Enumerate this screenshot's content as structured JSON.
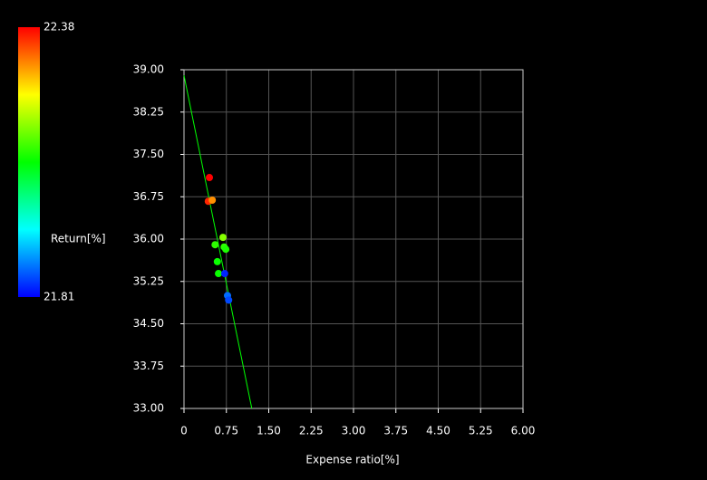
{
  "chart_data": {
    "type": "scatter",
    "xlabel": "Expense ratio[%]",
    "x": [
      0.45,
      0.43,
      0.5,
      0.69,
      0.55,
      0.71,
      0.74,
      0.59,
      0.61,
      0.72,
      0.77,
      0.79
    ],
    "y": [
      37.09,
      36.67,
      36.69,
      36.03,
      35.9,
      35.86,
      35.82,
      35.6,
      35.39,
      35.39,
      35.0,
      34.92
    ],
    "color_values": [
      22.38,
      22.36,
      22.3,
      22.17,
      22.12,
      22.12,
      22.11,
      22.1,
      22.1,
      21.83,
      21.87,
      21.85
    ],
    "colorbar": {
      "label": "Return[%]",
      "lim": [
        21.81,
        22.38
      ]
    },
    "trendline": {
      "x": [
        0,
        1.2
      ],
      "y": [
        38.9,
        33.0
      ],
      "color": "#00ff00"
    },
    "xlim": [
      0,
      6
    ],
    "xticks": [
      0,
      0.75,
      {
        "value": 1.5,
        "label": "1.50"
      },
      2.25,
      {
        "value": 3,
        "label": "3.00"
      },
      3.75,
      {
        "value": 4.5,
        "label": "4.50"
      },
      5.25,
      {
        "value": 6,
        "label": "6.00"
      }
    ],
    "ylim": [
      33,
      39
    ],
    "yticks": [
      {
        "value": 33,
        "label": "33.00"
      },
      33.75,
      {
        "value": 34.5,
        "label": "34.50"
      },
      35.25,
      {
        "value": 36,
        "label": "36.00"
      },
      36.75,
      {
        "value": 37.5,
        "label": "37.50"
      },
      38.25,
      {
        "value": 39,
        "label": "39.00"
      }
    ],
    "grid": true
  }
}
